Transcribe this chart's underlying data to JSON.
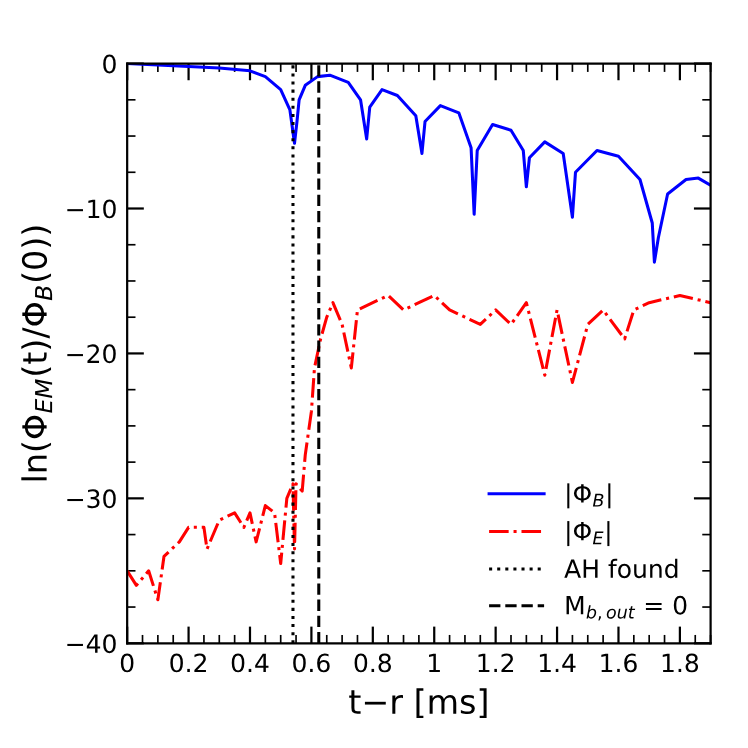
{
  "chart_data": {
    "type": "line",
    "xlabel": "t−r [ms]",
    "ylabel": "ln(Φ$_{EM}$(t)/Φ$_{B}$(0))",
    "xlim": [
      0,
      1.9
    ],
    "ylim": [
      -40,
      0
    ],
    "xticks": [
      0,
      0.2,
      0.4,
      0.6,
      0.8,
      1,
      1.2,
      1.4,
      1.6,
      1.8
    ],
    "yticks": [
      {
        "value": -40,
        "label": "−40"
      },
      {
        "value": -30,
        "label": "−30"
      },
      {
        "value": -20,
        "label": "−20"
      },
      {
        "value": -10,
        "label": "−10"
      },
      0
    ],
    "grid": false,
    "legend": "bottom right",
    "series": [
      {
        "name": "|Φ$_{B}$|",
        "color": "#0000ff",
        "line_style": "solid",
        "x": [
          0,
          0.1,
          0.2,
          0.3,
          0.4,
          0.45,
          0.5,
          0.53,
          0.545,
          0.553,
          0.56,
          0.58,
          0.62,
          0.66,
          0.72,
          0.76,
          0.78,
          0.79,
          0.83,
          0.88,
          0.94,
          0.96,
          0.97,
          1.02,
          1.08,
          1.12,
          1.13,
          1.14,
          1.19,
          1.25,
          1.29,
          1.3,
          1.31,
          1.36,
          1.42,
          1.45,
          1.46,
          1.53,
          1.6,
          1.67,
          1.71,
          1.717,
          1.73,
          1.76,
          1.82,
          1.86,
          1.9
        ],
        "values": [
          0,
          -0.1,
          -0.2,
          -0.3,
          -0.5,
          -0.9,
          -1.8,
          -3.2,
          -5.5,
          -4,
          -2.5,
          -1.5,
          -0.9,
          -0.8,
          -1.3,
          -2.5,
          -5.2,
          -3,
          -1.8,
          -2.2,
          -3.6,
          -6.2,
          -4,
          -2.9,
          -3.4,
          -5.8,
          -10.4,
          -6,
          -4.2,
          -4.6,
          -6,
          -8.5,
          -6.5,
          -5.4,
          -6.2,
          -10.6,
          -7.5,
          -6,
          -6.4,
          -8,
          -11,
          -13.7,
          -12,
          -9,
          -8,
          -7.9,
          -8.4
        ]
      },
      {
        "name": "|Φ$_{E}$|",
        "color": "#ff0000",
        "line_style": "dashdot",
        "x": [
          0,
          0.03,
          0.07,
          0.1,
          0.12,
          0.17,
          0.2,
          0.25,
          0.26,
          0.3,
          0.35,
          0.38,
          0.4,
          0.42,
          0.45,
          0.48,
          0.5,
          0.52,
          0.54,
          0.545,
          0.55,
          0.57,
          0.58,
          0.6,
          0.61,
          0.63,
          0.65,
          0.67,
          0.7,
          0.73,
          0.75,
          0.8,
          0.85,
          0.9,
          0.95,
          1.0,
          1.05,
          1.1,
          1.15,
          1.2,
          1.25,
          1.3,
          1.36,
          1.4,
          1.45,
          1.5,
          1.55,
          1.62,
          1.65,
          1.7,
          1.8,
          1.9
        ],
        "values": [
          -35,
          -36,
          -35,
          -37,
          -34,
          -33,
          -32,
          -32,
          -33.5,
          -31.5,
          -31,
          -32,
          -31,
          -33,
          -30.5,
          -31,
          -34.5,
          -30,
          -29,
          -33.5,
          -29,
          -29.5,
          -27,
          -24,
          -21,
          -19,
          -17.5,
          -16.5,
          -18,
          -21,
          -17,
          -16.5,
          -16,
          -17,
          -16.5,
          -16,
          -17,
          -17.5,
          -18,
          -17,
          -18,
          -16.5,
          -21.5,
          -17,
          -22,
          -18,
          -17,
          -19,
          -17,
          -16.5,
          -16,
          -16.5
        ]
      },
      {
        "name": "AH found",
        "color": "#000000",
        "line_style": "dotted",
        "x": [
          0.54,
          0.54
        ],
        "values": [
          -40,
          0
        ]
      },
      {
        "name": "M$_{b,out}$ = 0",
        "color": "#000000",
        "line_style": "dashed",
        "x": [
          0.624,
          0.624
        ],
        "values": [
          -40,
          0
        ]
      }
    ]
  }
}
